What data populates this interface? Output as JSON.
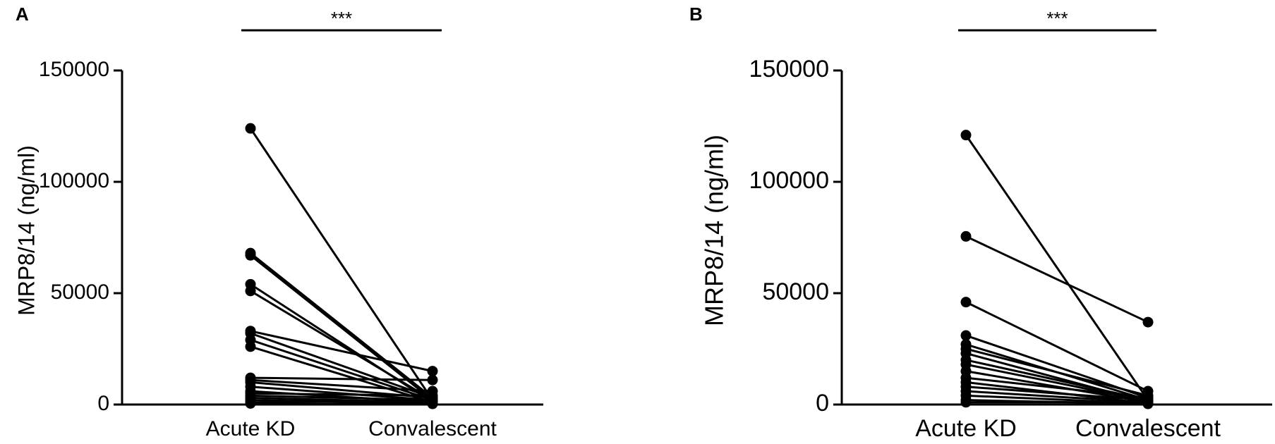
{
  "chart_data": [
    {
      "type": "line",
      "panel": "A",
      "annotation": "***",
      "ylabel": "MRP8/14 (ng/ml)",
      "categories": [
        "Acute KD",
        "Convalescent"
      ],
      "color": "#000000",
      "ylim": [
        0,
        150000
      ],
      "yticks": [
        0,
        50000,
        100000,
        150000
      ],
      "series": [
        {
          "values": [
            124000,
            2000
          ]
        },
        {
          "values": [
            68000,
            3000
          ]
        },
        {
          "values": [
            67000,
            2000
          ]
        },
        {
          "values": [
            54000,
            1000
          ]
        },
        {
          "values": [
            51000,
            2000
          ]
        },
        {
          "values": [
            33000,
            15000
          ]
        },
        {
          "values": [
            32000,
            3000
          ]
        },
        {
          "values": [
            29000,
            2000
          ]
        },
        {
          "values": [
            26000,
            1000
          ]
        },
        {
          "values": [
            12000,
            11000
          ]
        },
        {
          "values": [
            11000,
            6000
          ]
        },
        {
          "values": [
            10000,
            3000
          ]
        },
        {
          "values": [
            8000,
            2000
          ]
        },
        {
          "values": [
            6000,
            1000
          ]
        },
        {
          "values": [
            5000,
            4000
          ]
        },
        {
          "values": [
            4000,
            2000
          ]
        },
        {
          "values": [
            3000,
            1000
          ]
        },
        {
          "values": [
            2000,
            500
          ]
        },
        {
          "values": [
            1000,
            2000
          ]
        },
        {
          "values": [
            500,
            300
          ]
        }
      ]
    },
    {
      "type": "line",
      "panel": "B",
      "annotation": "***",
      "ylabel": "MRP8/14 (ng/ml)",
      "categories": [
        "Acute KD",
        "Convalescent"
      ],
      "color": "#000000",
      "ylim": [
        0,
        150000
      ],
      "yticks": [
        0,
        50000,
        100000,
        150000
      ],
      "series": [
        {
          "values": [
            121000,
            2000
          ]
        },
        {
          "values": [
            75500,
            37000
          ]
        },
        {
          "values": [
            46000,
            6000
          ]
        },
        {
          "values": [
            31000,
            3000
          ]
        },
        {
          "values": [
            27000,
            2000
          ]
        },
        {
          "values": [
            25000,
            4000
          ]
        },
        {
          "values": [
            23000,
            1000
          ]
        },
        {
          "values": [
            20000,
            2000
          ]
        },
        {
          "values": [
            18000,
            1500
          ]
        },
        {
          "values": [
            15000,
            1000
          ]
        },
        {
          "values": [
            12000,
            3000
          ]
        },
        {
          "values": [
            10000,
            500
          ]
        },
        {
          "values": [
            8000,
            2000
          ]
        },
        {
          "values": [
            6000,
            1000
          ]
        },
        {
          "values": [
            4000,
            500
          ]
        },
        {
          "values": [
            2000,
            300
          ]
        },
        {
          "values": [
            1000,
            1000
          ]
        }
      ]
    }
  ]
}
